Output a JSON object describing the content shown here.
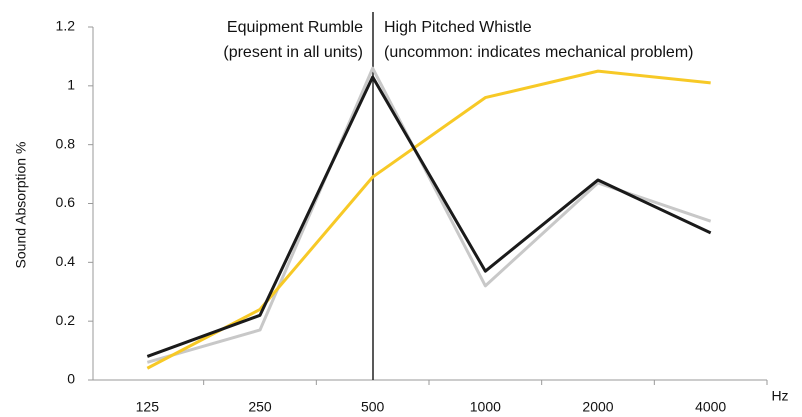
{
  "chart_data": {
    "type": "line",
    "y_label": "Sound Absorption %",
    "x_label": "Hz",
    "annotations": [
      "Equipment Rumble",
      "(present in all units)",
      "High Pitched Whistle",
      "(uncommon: indicates mechanical problem)"
    ],
    "categories": [
      "125",
      "250",
      "500",
      "1000",
      "2000",
      "4000"
    ],
    "series": [
      {
        "color": "#c8c8c8",
        "values": [
          0.06,
          0.17,
          1.06,
          0.32,
          0.67,
          0.54
        ]
      },
      {
        "color": "#f7c926",
        "values": [
          0.04,
          0.24,
          0.69,
          0.96,
          1.05,
          1.01
        ]
      },
      {
        "color": "#1a1a1a",
        "values": [
          0.08,
          0.22,
          1.03,
          0.37,
          0.68,
          0.5
        ]
      }
    ],
    "ylim": [
      0,
      1.2
    ],
    "yticks": [
      0,
      0.2,
      0.4,
      0.6,
      0.8,
      1,
      1.2
    ],
    "grid": false
  }
}
